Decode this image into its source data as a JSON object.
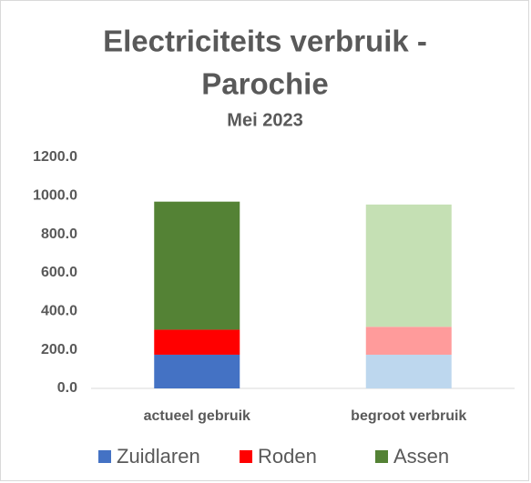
{
  "chart_data": {
    "type": "stacked_bar",
    "title": [
      "Electriciteits verbruik -",
      "Parochie"
    ],
    "subtitle": "Mei 2023",
    "categories": [
      "actueel gebruik",
      "begroot verbruik"
    ],
    "series": [
      {
        "name": "Zuidlaren",
        "colors": [
          "#4472c4",
          "#bdd7ee"
        ],
        "values": [
          175,
          175
        ]
      },
      {
        "name": "Roden",
        "colors": [
          "#ff0000",
          "#ff9b9b"
        ],
        "values": [
          130,
          145
        ]
      },
      {
        "name": "Assen",
        "colors": [
          "#548235",
          "#c5e0b4"
        ],
        "values": [
          665,
          635
        ]
      }
    ],
    "ylim": [
      0,
      1200
    ],
    "yticks": [
      {
        "value": 0,
        "label": "0.0"
      },
      {
        "value": 200,
        "label": "200.0"
      },
      {
        "value": 400,
        "label": "400.0"
      },
      {
        "value": 600,
        "label": "600.0"
      },
      {
        "value": 800,
        "label": "800.0"
      },
      {
        "value": 1000,
        "label": "1000.0"
      },
      {
        "value": 1200,
        "label": "1200.0"
      }
    ],
    "grid": false,
    "legend": "bottom"
  }
}
